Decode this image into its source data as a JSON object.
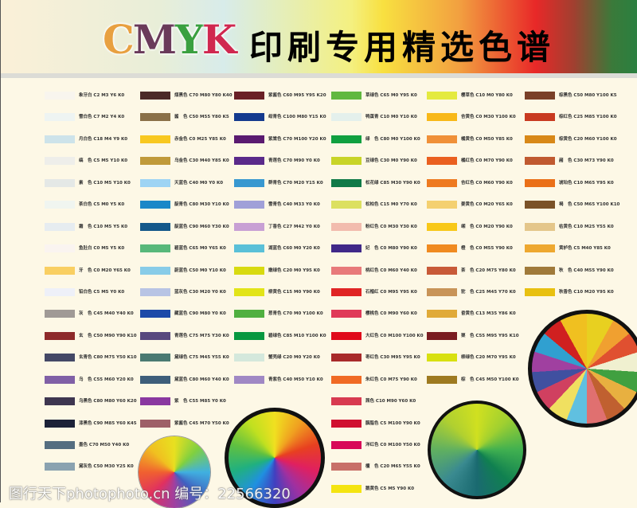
{
  "header": {
    "title_latin": "CMYK",
    "title_letters": [
      {
        "ch": "C",
        "color": "#e8a040"
      },
      {
        "ch": "M",
        "color": "#6a3a5a"
      },
      {
        "ch": "Y",
        "color": "#3aa040"
      },
      {
        "ch": "K",
        "color": "#d02850"
      }
    ],
    "title_cn": "印刷专用精选色谱"
  },
  "watermark": "图行天下photophoto.cn 编号：22566320",
  "columns": [
    [
      {
        "label": "象牙白 C2 M3 Y6 K0",
        "color": "#f8f5ee"
      },
      {
        "label": "雪白色 C7 M2 Y4 K0",
        "color": "#eef4f2"
      },
      {
        "label": "月白色 C18 M4 Y9 K0",
        "color": "#cde3ea"
      },
      {
        "label": "缟　色 C5 M5 Y10 K0",
        "color": "#eeeeea"
      },
      {
        "label": "素　色 C10 M5 Y10 K0",
        "color": "#e4e8e6"
      },
      {
        "label": "茶白色 C5 M0 Y5 K0",
        "color": "#f0f5f0"
      },
      {
        "label": "霜　色 C10 M5 Y5 K0",
        "color": "#e6ecf0"
      },
      {
        "label": "鱼肚白 C0 M5 Y5 K0",
        "color": "#faf4f0"
      },
      {
        "label": "牙　色 C0 M20 Y65 K0",
        "color": "#f9cf62"
      },
      {
        "label": "铅白色 C5 M5 Y0 K0",
        "color": "#eef0f8"
      },
      {
        "label": "灰　色 C45 M40 Y40 K0",
        "color": "#a09a96"
      },
      {
        "label": "玄　色 C50 M90 Y90 K10",
        "color": "#8e2a2a"
      },
      {
        "label": "玄青色 C80 M75 Y50 K10",
        "color": "#444866"
      },
      {
        "label": "乌　色 C55 M60 Y20 K0",
        "color": "#8060a6"
      },
      {
        "label": "乌黑色 C80 M80 Y60 K20",
        "color": "#3e3650"
      },
      {
        "label": "漆黑色 C90 M85 Y60 K45",
        "color": "#1c2238"
      },
      {
        "label": "墨色 C70 M50 Y40 K0",
        "color": "#556e80"
      },
      {
        "label": "黛灰色 C50 M30 Y25 K0",
        "color": "#8aa2b0"
      }
    ],
    [
      {
        "label": "煤黑色 C70 M80 Y80 K40",
        "color": "#4a2a28"
      },
      {
        "label": "酱　色 C50 M55 Y80 K5",
        "color": "#8a7048"
      },
      {
        "label": "赤金色 C0 M25 Y85 K0",
        "color": "#f8c820"
      },
      {
        "label": "乌金色 C30 M40 Y85 K0",
        "color": "#c09a3a"
      },
      {
        "label": "天蓝色 C40 M0 Y0 K0",
        "color": "#9ed4f4"
      },
      {
        "label": "靛青色 C80 M30 Y10 K0",
        "color": "#1a88c8"
      },
      {
        "label": "靛蓝色 C90 M60 Y30 K0",
        "color": "#14588a"
      },
      {
        "label": "碧蓝色 C65 M0 Y65 K0",
        "color": "#58b87a"
      },
      {
        "label": "蔚蓝色 C50 M0 Y10 K0",
        "color": "#88cce8"
      },
      {
        "label": "蓝灰色 C30 M20 Y0 K0",
        "color": "#b8c4e4"
      },
      {
        "label": "藏蓝色 C90 M80 Y0 K0",
        "color": "#1c4aa8"
      },
      {
        "label": "青莲色 C75 M75 Y30 K0",
        "color": "#58487e"
      },
      {
        "label": "黛绿色 C75 M45 Y55 K0",
        "color": "#4a7a72"
      },
      {
        "label": "黛蓝色 C80 M60 Y40 K0",
        "color": "#3e5e7a"
      },
      {
        "label": "紫　色 C55 M85 Y0 K0",
        "color": "#8a38a0"
      },
      {
        "label": "紫酱色 C45 M70 Y50 K0",
        "color": "#9e6068"
      }
    ],
    [
      {
        "label": "紫酱色 C60 M95 Y95 K20",
        "color": "#6a2026"
      },
      {
        "label": "绀青色 C100 M80 Y15 K0",
        "color": "#143a8e"
      },
      {
        "label": "紫棠色 C70 M100 Y20 K0",
        "color": "#5a1a70"
      },
      {
        "label": "青莲色 C70 M90 Y0 K0",
        "color": "#5a2a8a"
      },
      {
        "label": "群青色 C70 M20 Y15 K0",
        "color": "#3898d0"
      },
      {
        "label": "雪青色 C40 M33 Y0 K0",
        "color": "#a0a0d8"
      },
      {
        "label": "丁香色 C27 M42 Y0 K0",
        "color": "#c8a0d4"
      },
      {
        "label": "湖蓝色 C60 M0 Y20 K0",
        "color": "#5ac0d8"
      },
      {
        "label": "嫩绿色 C20 M0 Y95 K0",
        "color": "#d8da10"
      },
      {
        "label": "柳黄色 C15 M0 Y90 K0",
        "color": "#e2e418"
      },
      {
        "label": "葱青色 C70 M0 Y100 K0",
        "color": "#50b040"
      },
      {
        "label": "碧绿色 C85 M10 Y100 K0",
        "color": "#089840"
      },
      {
        "label": "蟹壳绿 C20 M0 Y20 K0",
        "color": "#d4e8dc"
      },
      {
        "label": "青紫色 C40 M50 Y10 K0",
        "color": "#a088c4"
      }
    ],
    [
      {
        "label": "草绿色 C65 M0 Y95 K0",
        "color": "#60b840"
      },
      {
        "label": "鸭蛋青 C10 M0 Y10 K0",
        "color": "#e4f0ec"
      },
      {
        "label": "绿　色 C80 M0 Y100 K0",
        "color": "#10a040"
      },
      {
        "label": "豆绿色 C30 M0 Y90 K0",
        "color": "#c8d428"
      },
      {
        "label": "松花绿 C85 M30 Y90 K0",
        "color": "#107a48"
      },
      {
        "label": "松柏色 C15 M0 Y70 K0",
        "color": "#dce060"
      },
      {
        "label": "粉红色 C0 M30 Y30 K0",
        "color": "#f2bcae"
      },
      {
        "label": "妃　色 C0 M80 Y90 K0",
        "color": "#402888"
      },
      {
        "label": "桃红色 C0 M60 Y40 K0",
        "color": "#e87a7a"
      },
      {
        "label": "石榴红 C0 M95 Y95 K0",
        "color": "#e02424"
      },
      {
        "label": "樱桃色 C0 M90 Y60 K0",
        "color": "#e03a58"
      },
      {
        "label": "大红色 C0 M100 Y100 K0",
        "color": "#e00a1a"
      },
      {
        "label": "枣红色 C30 M95 Y95 K0",
        "color": "#a82a2a"
      },
      {
        "label": "朱红色 C0 M75 Y90 K0",
        "color": "#f06a24"
      },
      {
        "label": "茜色 C10 M90 Y60 K0",
        "color": "#d83a50"
      },
      {
        "label": "胭脂色 C5 M100 Y90 K0",
        "color": "#d01030"
      },
      {
        "label": "洋红色 C0 M100 Y50 K0",
        "color": "#d80858"
      },
      {
        "label": "檀　色 C20 M65 Y55 K0",
        "color": "#c87068"
      },
      {
        "label": "鹅黄色 C5 M5 Y90 K0",
        "color": "#f4e410"
      }
    ],
    [
      {
        "label": "樱草色 C10 M0 Y80 K0",
        "color": "#e4ea40"
      },
      {
        "label": "杏黄色 C0 M30 Y100 K0",
        "color": "#f8b818"
      },
      {
        "label": "橘黄色 C0 M50 Y85 K0",
        "color": "#f09038"
      },
      {
        "label": "橘红色 C0 M70 Y90 K0",
        "color": "#ea6020"
      },
      {
        "label": "杏红色 C0 M60 Y90 K0",
        "color": "#ee7a20"
      },
      {
        "label": "姜黄色 C0 M20 Y65 K0",
        "color": "#f4d070"
      },
      {
        "label": "缃　色 C0 M20 Y90 K0",
        "color": "#f8c818"
      },
      {
        "label": "橙　色 C0 M55 Y90 K0",
        "color": "#f08a20"
      },
      {
        "label": "茶　色 C20 M75 Y80 K0",
        "color": "#c85a38"
      },
      {
        "label": "驼　色 C25 M45 Y70 K0",
        "color": "#c89458"
      },
      {
        "label": "昏黄色 C13 M35 Y86 K0",
        "color": "#e0aa38"
      },
      {
        "label": "栗　色 C55 M95 Y95 K10",
        "color": "#7a1c20"
      },
      {
        "label": "柳绿色 C20 M70 Y95 K0",
        "color": "#d8e010"
      },
      {
        "label": "棕　色 C45 M50 Y100 K0",
        "color": "#9e7a20"
      }
    ],
    [
      {
        "label": "棕黑色 C50 M80 Y100 K5",
        "color": "#7a4028"
      },
      {
        "label": "棕红色 C25 M85 Y100 K0",
        "color": "#c83a20"
      },
      {
        "label": "棕黄色 C20 M60 Y100 K0",
        "color": "#d88818"
      },
      {
        "label": "赭　色 C30 M73 Y90 K0",
        "color": "#c05a30"
      },
      {
        "label": "琥珀色 C10 M65 Y95 K0",
        "color": "#ea7018"
      },
      {
        "label": "褐　色 C50 M65 Y100 K10",
        "color": "#7a5228"
      },
      {
        "label": "枯黄色 C10 M25 Y55 K0",
        "color": "#e4c68a"
      },
      {
        "label": "黄栌色 C5 M40 Y85 K0",
        "color": "#eea830"
      },
      {
        "label": "秋　色 C40 M55 Y90 K0",
        "color": "#a07a3a"
      },
      {
        "label": "秋香色 C10 M20 Y95 K0",
        "color": "#e8c010"
      }
    ]
  ]
}
